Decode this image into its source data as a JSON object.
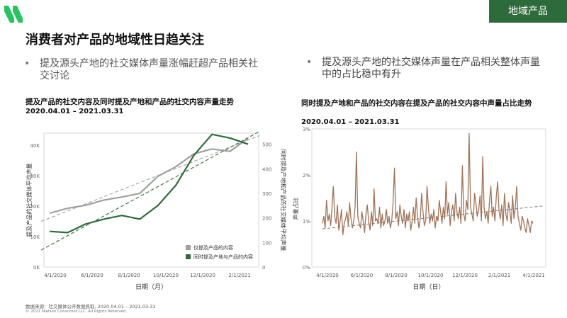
{
  "header": {
    "tag": "地域产品",
    "title": "消费者对产品的地域性日趋关注"
  },
  "bullets": [
    {
      "marker": "•",
      "text": "提及源头产地的社交媒体声量涨幅赶超产品相关社交讨论"
    },
    {
      "marker": "•",
      "text": "提及源头产地的社交媒体声量在产品相关整体声量中的占比稳中有升"
    }
  ],
  "colors": {
    "brand": "#2e6b3a",
    "series_gray": "#a0a0a0",
    "series_green": "#2e6b3a",
    "series_brown": "#a07358",
    "logo": "#22c55e"
  },
  "icons": {
    "logo": "nielsen-logo-icon"
  },
  "chart_data": [
    {
      "type": "line",
      "title": "提及产品的社交内容及同时提及产地和产品的社交内容声量走势",
      "subtitle": "2020.04.01 – 2021.03.31",
      "xlabel": "日期（月）",
      "ylabel": "提及产品的社交媒体平均声量",
      "y2label": "同时提及产地和产品的社交媒体平均声量",
      "x_ticks": [
        "4/1/2020",
        "6/1/2020",
        "8/1/2020",
        "10/1/2020",
        "12/1/2020",
        "2/1/2021"
      ],
      "y_ticks": [
        "0K",
        "10K",
        "20K",
        "30K",
        "40K"
      ],
      "y2_ticks": [
        "0",
        "100",
        "200",
        "300",
        "400",
        "500"
      ],
      "ylim": [
        0,
        44000
      ],
      "y2lim": [
        0,
        545
      ],
      "x": [
        "2020-04",
        "2020-05",
        "2020-06",
        "2020-07",
        "2020-08",
        "2020-09",
        "2020-10",
        "2020-11",
        "2020-12",
        "2021-01",
        "2021-02",
        "2021-03"
      ],
      "series": [
        {
          "name": "仅提及产品的内容",
          "axis": "left",
          "values": [
            17700,
            19300,
            20300,
            22000,
            23000,
            24200,
            29800,
            33000,
            37200,
            38800,
            38000,
            42300
          ]
        },
        {
          "name": "同时提及产地与产品的内容",
          "axis": "right",
          "values": [
            145,
            140,
            175,
            195,
            210,
            195,
            250,
            333,
            455,
            540,
            525,
            500
          ]
        }
      ],
      "legend_position": "bottom-right",
      "grid": false
    },
    {
      "type": "line",
      "title": "同时提及产地和产品的社交内容在提及产品的社交内容中声量占比走势",
      "subtitle": "2020.04.01 – 2021.03.31",
      "xlabel": "日期（日）",
      "ylabel": "声量占比",
      "x_ticks": [
        "4/1/2020",
        "6/1/2020",
        "8/1/2020",
        "10/1/2020",
        "12/1/2020",
        "2/1/2021",
        "4/1/2021"
      ],
      "y_ticks": [
        "0%",
        "1%",
        "2%",
        "3%"
      ],
      "ylim": [
        0,
        3
      ],
      "xlim": [
        "2020-04-01",
        "2021-04-01"
      ],
      "series": [
        {
          "name": "",
          "values": [
            0.95,
            1.1,
            0.85,
            1.45,
            1.0,
            1.15,
            0.9,
            1.3,
            1.75,
            1.1,
            0.95,
            1.35,
            0.8,
            1.0,
            1.25,
            0.7,
            0.95,
            1.05,
            1.2,
            0.9,
            1.4,
            1.05,
            0.85,
            1.0,
            1.3,
            2.5,
            1.1,
            0.95,
            0.85,
            1.2,
            1.0,
            0.75,
            1.15,
            1.35,
            1.0,
            0.8,
            1.2,
            0.9,
            1.7,
            1.0,
            1.05,
            0.95,
            1.3,
            0.85,
            1.15,
            0.9,
            1.0,
            1.25,
            0.95,
            1.1,
            0.85,
            1.0,
            1.4,
            2.15,
            1.05,
            1.2,
            0.9,
            1.35,
            1.1,
            0.95,
            1.25,
            0.85,
            1.15,
            1.0,
            1.2,
            0.8,
            1.0,
            1.3,
            0.95,
            1.5,
            1.1,
            0.85,
            1.05,
            1.6,
            1.2,
            0.9,
            1.0,
            1.75,
            1.3,
            0.95,
            1.15,
            1.0,
            1.25,
            0.85,
            1.1,
            1.0,
            1.45,
            1.2,
            0.95,
            1.3,
            1.05,
            1.85,
            1.15,
            1.4,
            0.9,
            1.2,
            1.35,
            1.0,
            1.6,
            1.2,
            1.05,
            1.3,
            0.95,
            2.2,
            1.15,
            1.0,
            1.45,
            1.25,
            2.9,
            1.3,
            1.15,
            1.0,
            1.6,
            1.4,
            1.1,
            1.25,
            1.55,
            1.0,
            2.4,
            1.3,
            1.05,
            1.2,
            0.95,
            1.45,
            1.75,
            1.1,
            1.3,
            1.0,
            1.55,
            1.85,
            1.2,
            1.05,
            1.35,
            0.9,
            1.6,
            1.15,
            1.0,
            1.4,
            1.2,
            0.95,
            1.55,
            1.05,
            1.3,
            1.75,
            1.1,
            0.95,
            0.8,
            1.1,
            1.0,
            0.85,
            0.75,
            1.05,
            0.9,
            0.75,
            1.0,
            0.95
          ]
        },
        {
          "name": "trend",
          "values": [
            0.83,
            1.33
          ]
        }
      ],
      "grid": false
    }
  ],
  "footer": {
    "source": "数据来源：社交媒体公开数据抓取, 2020.04.01 – 2021.03.31",
    "copyright": "© 2021 Nielsen Consumer LLC. All Rights Reserved."
  }
}
